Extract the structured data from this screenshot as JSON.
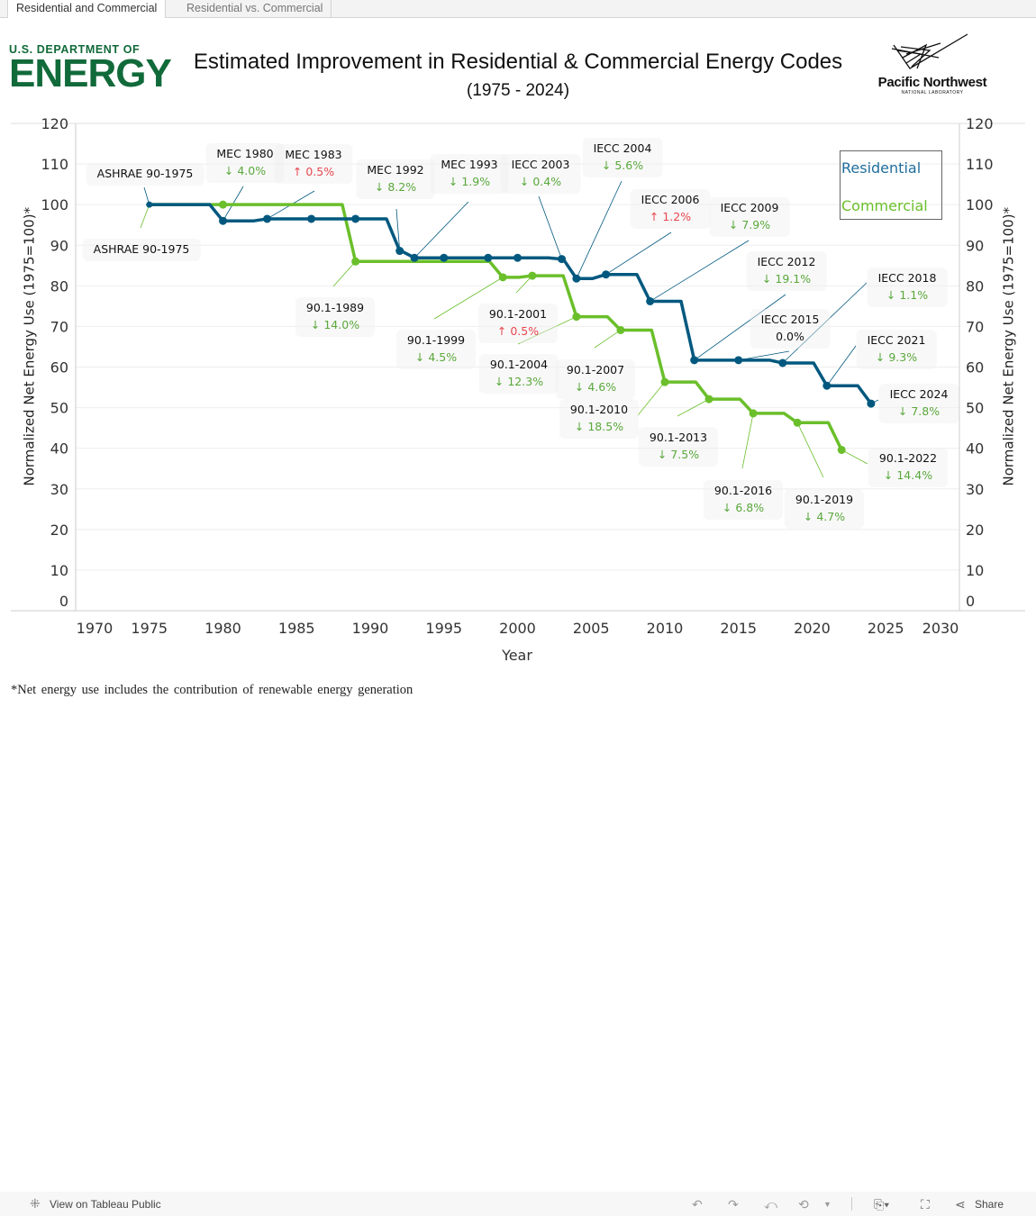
{
  "tabs": [
    {
      "label": "Residential and Commercial",
      "active": true
    },
    {
      "label": "Residential vs. Commercial",
      "active": false
    }
  ],
  "header": {
    "doe_logo_small": "U.S. DEPARTMENT OF",
    "doe_logo_big": "ENERGY",
    "title": "Estimated Improvement in Residential & Commercial Energy Codes",
    "subtitle": "(1975 - 2024)",
    "pnnl_logo_name": "Pacific Northwest",
    "pnnl_logo_sub": "NATIONAL LABORATORY"
  },
  "legend": {
    "residential": "Residential",
    "commercial": "Commercial"
  },
  "footnote": "*Net energy use includes the contribution of renewable energy generation",
  "toolbar": {
    "view_label": "View on Tableau Public",
    "share_label": "Share",
    "icons": [
      "tableau-logo-icon",
      "undo-icon",
      "redo-icon",
      "revert-icon",
      "refresh-icon",
      "chevron-down-icon",
      "download-icon",
      "fullscreen-icon",
      "share-icon"
    ]
  },
  "chart_data": {
    "type": "line",
    "title": "Estimated Improvement in Residential & Commercial Energy Codes",
    "xlabel": "Year",
    "ylabel": "Normalized Net Energy Use (1975=100)*",
    "y2label": "Normalized Net Energy Use (1975=100)*",
    "xlim": [
      1970,
      2030
    ],
    "ylim": [
      0,
      120
    ],
    "x_ticks": [
      1970,
      1975,
      1980,
      1985,
      1990,
      1995,
      2000,
      2005,
      2010,
      2015,
      2020,
      2025,
      2030
    ],
    "y_ticks": [
      0,
      10,
      20,
      30,
      40,
      50,
      60,
      70,
      80,
      90,
      100,
      110,
      120
    ],
    "grid": true,
    "legend_position": "top-right",
    "colors": {
      "residential": "#00587f",
      "commercial": "#6abf2a",
      "decrease": "#5aa83c",
      "increase": "#e8474f"
    },
    "series": [
      {
        "name": "Residential",
        "points": [
          [
            1975,
            100
          ],
          [
            1980,
            96.0
          ],
          [
            1983,
            96.5
          ],
          [
            1986,
            96.5
          ],
          [
            1989,
            96.5
          ],
          [
            1992,
            88.6
          ],
          [
            1993,
            86.9
          ],
          [
            1995,
            86.9
          ],
          [
            1998,
            86.9
          ],
          [
            2000,
            86.9
          ],
          [
            2003,
            86.6
          ],
          [
            2004,
            81.8
          ],
          [
            2006,
            82.8
          ],
          [
            2009,
            76.2
          ],
          [
            2012,
            61.7
          ],
          [
            2015,
            61.7
          ],
          [
            2018,
            61.0
          ],
          [
            2021,
            55.4
          ],
          [
            2024,
            51.0
          ]
        ]
      },
      {
        "name": "Commercial",
        "points": [
          [
            1975,
            100
          ],
          [
            1980,
            100
          ],
          [
            1989,
            86.0
          ],
          [
            1999,
            82.1
          ],
          [
            2001,
            82.5
          ],
          [
            2004,
            72.4
          ],
          [
            2007,
            69.1
          ],
          [
            2010,
            56.3
          ],
          [
            2013,
            52.1
          ],
          [
            2016,
            48.6
          ],
          [
            2019,
            46.3
          ],
          [
            2022,
            39.6
          ]
        ]
      }
    ],
    "annotations": [
      {
        "series": "Residential",
        "year": 1975,
        "code": "ASHRAE 90-1975",
        "change": "",
        "dir": "none"
      },
      {
        "series": "Residential",
        "year": 1980,
        "code": "MEC 1980",
        "change": "4.0%",
        "dir": "down"
      },
      {
        "series": "Residential",
        "year": 1983,
        "code": "MEC 1983",
        "change": "0.5%",
        "dir": "up"
      },
      {
        "series": "Residential",
        "year": 1992,
        "code": "MEC 1992",
        "change": "8.2%",
        "dir": "down"
      },
      {
        "series": "Residential",
        "year": 1993,
        "code": "MEC 1993",
        "change": "1.9%",
        "dir": "down"
      },
      {
        "series": "Residential",
        "year": 2003,
        "code": "IECC 2003",
        "change": "0.4%",
        "dir": "down"
      },
      {
        "series": "Residential",
        "year": 2004,
        "code": "IECC 2004",
        "change": "5.6%",
        "dir": "down"
      },
      {
        "series": "Residential",
        "year": 2006,
        "code": "IECC 2006",
        "change": "1.2%",
        "dir": "up"
      },
      {
        "series": "Residential",
        "year": 2009,
        "code": "IECC 2009",
        "change": "7.9%",
        "dir": "down"
      },
      {
        "series": "Residential",
        "year": 2012,
        "code": "IECC 2012",
        "change": "19.1%",
        "dir": "down"
      },
      {
        "series": "Residential",
        "year": 2015,
        "code": "IECC 2015",
        "change": "0.0%",
        "dir": "flat"
      },
      {
        "series": "Residential",
        "year": 2018,
        "code": "IECC 2018",
        "change": "1.1%",
        "dir": "down"
      },
      {
        "series": "Residential",
        "year": 2021,
        "code": "IECC 2021",
        "change": "9.3%",
        "dir": "down"
      },
      {
        "series": "Residential",
        "year": 2024,
        "code": "IECC 2024",
        "change": "7.8%",
        "dir": "down"
      },
      {
        "series": "Commercial",
        "year": 1975,
        "code": "ASHRAE 90-1975",
        "change": "",
        "dir": "none"
      },
      {
        "series": "Commercial",
        "year": 1989,
        "code": "90.1-1989",
        "change": "14.0%",
        "dir": "down"
      },
      {
        "series": "Commercial",
        "year": 1999,
        "code": "90.1-1999",
        "change": "4.5%",
        "dir": "down"
      },
      {
        "series": "Commercial",
        "year": 2001,
        "code": "90.1-2001",
        "change": "0.5%",
        "dir": "up"
      },
      {
        "series": "Commercial",
        "year": 2004,
        "code": "90.1-2004",
        "change": "12.3%",
        "dir": "down"
      },
      {
        "series": "Commercial",
        "year": 2007,
        "code": "90.1-2007",
        "change": "4.6%",
        "dir": "down"
      },
      {
        "series": "Commercial",
        "year": 2010,
        "code": "90.1-2010",
        "change": "18.5%",
        "dir": "down"
      },
      {
        "series": "Commercial",
        "year": 2013,
        "code": "90.1-2013",
        "change": "7.5%",
        "dir": "down"
      },
      {
        "series": "Commercial",
        "year": 2016,
        "code": "90.1-2016",
        "change": "6.8%",
        "dir": "down"
      },
      {
        "series": "Commercial",
        "year": 2019,
        "code": "90.1-2019",
        "change": "4.7%",
        "dir": "down"
      },
      {
        "series": "Commercial",
        "year": 2022,
        "code": "90.1-2022",
        "change": "14.4%",
        "dir": "down"
      }
    ]
  }
}
